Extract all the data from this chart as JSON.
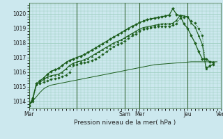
{
  "xlabel": "Pression niveau de la mer( hPa )",
  "bg_color": "#cce8ee",
  "grid_color": "#99ccbb",
  "line_color": "#1a5c1a",
  "vline_color": "#336633",
  "ylim": [
    1013.5,
    1020.75
  ],
  "yticks": [
    1014,
    1015,
    1016,
    1017,
    1018,
    1019,
    1020
  ],
  "day_positions": [
    0,
    13,
    26,
    30,
    43,
    52
  ],
  "day_labels": [
    "Mar",
    "",
    "Sam",
    "Mer",
    "Jeu",
    "Ven"
  ],
  "xlim": [
    0,
    52
  ],
  "series_flat_x": [
    0,
    1,
    2,
    3,
    4,
    5,
    6,
    7,
    8,
    9,
    10,
    11,
    12,
    13,
    14,
    15,
    16,
    17,
    18,
    19,
    20,
    21,
    22,
    23,
    24,
    25,
    26,
    27,
    28,
    29,
    30,
    31,
    32,
    33,
    34,
    35,
    36,
    37,
    38,
    39,
    40,
    41,
    42,
    43,
    44,
    45,
    46,
    47,
    48,
    49,
    50,
    51
  ],
  "series_flat_y": [
    1013.7,
    1014.0,
    1014.3,
    1014.6,
    1014.85,
    1015.0,
    1015.1,
    1015.15,
    1015.2,
    1015.25,
    1015.3,
    1015.35,
    1015.4,
    1015.45,
    1015.5,
    1015.55,
    1015.6,
    1015.65,
    1015.7,
    1015.75,
    1015.8,
    1015.85,
    1015.9,
    1015.95,
    1016.0,
    1016.05,
    1016.1,
    1016.15,
    1016.2,
    1016.25,
    1016.3,
    1016.35,
    1016.4,
    1016.45,
    1016.5,
    1016.52,
    1016.54,
    1016.56,
    1016.58,
    1016.6,
    1016.62,
    1016.64,
    1016.66,
    1016.68,
    1016.7,
    1016.7,
    1016.7,
    1016.7,
    1016.7,
    1016.7,
    1016.7,
    1016.7
  ],
  "series_dotted_x": [
    0,
    1,
    2,
    3,
    4,
    5,
    6,
    7,
    8,
    9,
    10,
    11,
    12,
    13,
    14,
    15,
    16,
    17,
    18,
    19,
    20,
    21,
    22,
    23,
    24,
    25,
    26,
    27,
    28,
    29,
    30,
    31,
    32,
    33,
    34,
    35,
    36,
    37,
    38,
    39,
    40,
    41,
    42,
    43,
    44,
    45,
    46,
    47,
    48,
    49,
    50
  ],
  "series_dotted_y": [
    1013.7,
    1014.0,
    1015.1,
    1015.2,
    1015.3,
    1015.4,
    1015.5,
    1015.55,
    1015.6,
    1015.7,
    1015.8,
    1016.0,
    1016.45,
    1016.5,
    1016.6,
    1016.65,
    1016.7,
    1016.8,
    1016.9,
    1017.05,
    1017.2,
    1017.4,
    1017.6,
    1017.75,
    1017.9,
    1018.0,
    1018.15,
    1018.3,
    1018.5,
    1018.6,
    1018.8,
    1018.95,
    1019.0,
    1019.05,
    1019.1,
    1019.15,
    1019.15,
    1019.15,
    1019.15,
    1019.2,
    1019.3,
    1019.7,
    1019.75,
    1019.8,
    1019.5,
    1019.35,
    1019.0,
    1018.5,
    1016.3,
    1016.45,
    1016.5
  ],
  "series_tri_x": [
    0,
    1,
    2,
    3,
    4,
    5,
    6,
    7,
    8,
    9,
    10,
    11,
    12,
    13,
    14,
    15,
    16,
    17,
    18,
    19,
    20,
    21,
    22,
    23,
    24,
    25,
    26,
    27,
    28,
    29,
    30,
    31,
    32,
    33,
    34,
    35,
    36,
    37,
    38,
    39,
    40,
    41,
    42,
    43,
    44,
    45,
    46,
    47,
    48,
    49,
    50
  ],
  "series_tri_y": [
    1013.7,
    1014.1,
    1015.15,
    1015.3,
    1015.5,
    1015.65,
    1015.75,
    1015.8,
    1015.85,
    1016.0,
    1016.2,
    1016.45,
    1016.6,
    1016.7,
    1016.75,
    1016.85,
    1016.95,
    1017.1,
    1017.25,
    1017.4,
    1017.55,
    1017.7,
    1017.85,
    1018.0,
    1018.1,
    1018.2,
    1018.35,
    1018.5,
    1018.65,
    1018.8,
    1018.95,
    1019.05,
    1019.1,
    1019.15,
    1019.2,
    1019.25,
    1019.3,
    1019.3,
    1019.3,
    1019.35,
    1019.55,
    1019.9,
    1019.85,
    1019.8,
    1019.35,
    1019.1,
    1018.5,
    1017.9,
    1016.2,
    1016.4,
    1016.55
  ],
  "series_main_x": [
    0,
    1,
    2,
    3,
    4,
    5,
    6,
    7,
    8,
    9,
    10,
    11,
    12,
    13,
    14,
    15,
    16,
    17,
    18,
    19,
    20,
    21,
    22,
    23,
    24,
    25,
    26,
    27,
    28,
    29,
    30,
    31,
    32,
    33,
    34,
    35,
    36,
    37,
    38,
    39,
    40,
    41,
    42,
    43,
    44,
    45,
    46,
    47,
    48,
    49,
    50
  ],
  "series_main_y": [
    1013.7,
    1014.2,
    1015.2,
    1015.4,
    1015.6,
    1015.85,
    1016.05,
    1016.15,
    1016.25,
    1016.45,
    1016.65,
    1016.8,
    1016.9,
    1017.0,
    1017.1,
    1017.2,
    1017.35,
    1017.5,
    1017.65,
    1017.8,
    1017.95,
    1018.1,
    1018.25,
    1018.4,
    1018.55,
    1018.7,
    1018.85,
    1019.0,
    1019.15,
    1019.25,
    1019.4,
    1019.5,
    1019.6,
    1019.65,
    1019.7,
    1019.75,
    1019.8,
    1019.85,
    1019.9,
    1020.35,
    1019.95,
    1019.85,
    1019.3,
    1019.0,
    1018.5,
    1018.0,
    1017.4,
    1016.9,
    1016.9,
    1016.7,
    1016.65
  ]
}
